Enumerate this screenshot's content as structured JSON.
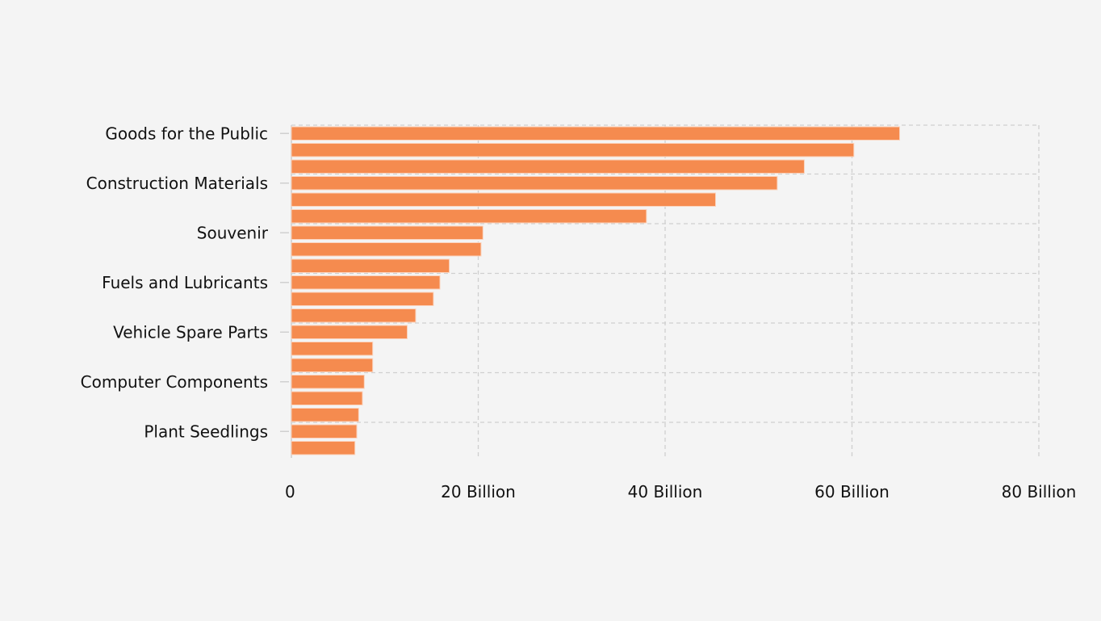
{
  "chart_data": {
    "type": "bar",
    "orientation": "horizontal",
    "categories": [
      "Goods for the Public",
      "",
      "",
      "Construction Materials",
      "",
      "",
      "Souvenir",
      "",
      "",
      "Fuels and Lubricants",
      "",
      "",
      "Vehicle Spare Parts",
      "",
      "",
      "Computer Components",
      "",
      "",
      "Plant Seedlings",
      ""
    ],
    "values": [
      65.1,
      60.2,
      54.9,
      52.0,
      45.4,
      38.0,
      20.5,
      20.3,
      16.9,
      15.9,
      15.2,
      13.3,
      12.4,
      8.7,
      8.7,
      7.8,
      7.6,
      7.2,
      7.0,
      6.8
    ],
    "value_unit": "Billion",
    "xlim": [
      0,
      80
    ],
    "xticks": [
      0,
      20,
      40,
      60,
      80
    ],
    "xtick_labels": [
      "0",
      "20 Billion",
      "40 Billion",
      "60 Billion",
      "80 Billion"
    ],
    "grid": true,
    "bar_color": "#f58b4f",
    "background": "#f4f4f4"
  }
}
